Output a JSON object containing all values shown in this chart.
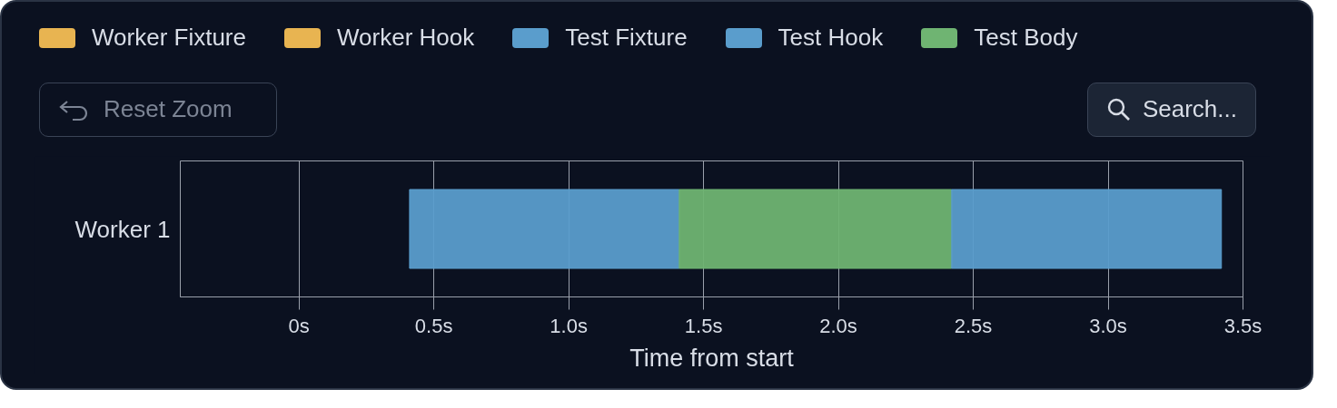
{
  "chart_data": {
    "type": "bar",
    "orientation": "horizontal",
    "categories": [
      "Worker 1"
    ],
    "xlabel": "Time from start",
    "xlim": [
      -0.44,
      3.5
    ],
    "xticks": [
      {
        "value": 0,
        "label": "0s"
      },
      {
        "value": 0.5,
        "label": "0.5s"
      },
      {
        "value": 1.0,
        "label": "1.0s"
      },
      {
        "value": 1.5,
        "label": "1.5s"
      },
      {
        "value": 2.0,
        "label": "2.0s"
      },
      {
        "value": 2.5,
        "label": "2.5s"
      },
      {
        "value": 3.0,
        "label": "3.0s"
      },
      {
        "value": 3.5,
        "label": "3.5s"
      }
    ],
    "grid": "x",
    "legend": "top left",
    "annotations": [
      "Reset Zoom",
      "Search..."
    ],
    "series": [
      {
        "name": "Worker Fixture",
        "color": "#e8b451",
        "values": [
          null
        ],
        "base": [
          null
        ]
      },
      {
        "name": "Worker Hook",
        "color": "#e8b451",
        "values": [
          null
        ],
        "base": [
          null
        ]
      },
      {
        "name": "Test Fixture",
        "color": "#5a9dcc",
        "values": [
          1.0
        ],
        "base": [
          0.41
        ]
      },
      {
        "name": "Test Hook",
        "color": "#5a9dcc",
        "values": [
          null
        ],
        "base": [
          null
        ]
      },
      {
        "name": "Test Body",
        "color": "#6fb472",
        "values": [
          1.01
        ],
        "base": [
          1.41
        ]
      },
      {
        "color": "#5a9dcc",
        "values": [
          1.0
        ],
        "base": [
          2.42
        ]
      }
    ]
  }
}
